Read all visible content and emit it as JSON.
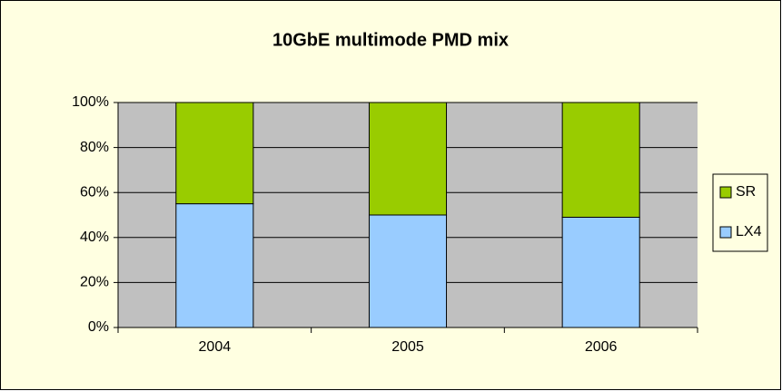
{
  "chart_data": {
    "type": "stacked_bar",
    "title": "10GbE multimode PMD mix",
    "categories": [
      "2004",
      "2005",
      "2006"
    ],
    "series": [
      {
        "name": "LX4",
        "color": "#99CCFF",
        "values": [
          55,
          50,
          49
        ]
      },
      {
        "name": "SR",
        "color": "#99CC00",
        "values": [
          45,
          50,
          51
        ]
      }
    ],
    "ylim": [
      0,
      100
    ],
    "yticks": [
      {
        "value": 0,
        "label": "0%"
      },
      {
        "value": 20,
        "label": "20%"
      },
      {
        "value": 40,
        "label": "40%"
      },
      {
        "value": 60,
        "label": "60%"
      },
      {
        "value": 80,
        "label": "80%"
      },
      {
        "value": 100,
        "label": "100%"
      }
    ],
    "grid": true,
    "legend": "right"
  }
}
